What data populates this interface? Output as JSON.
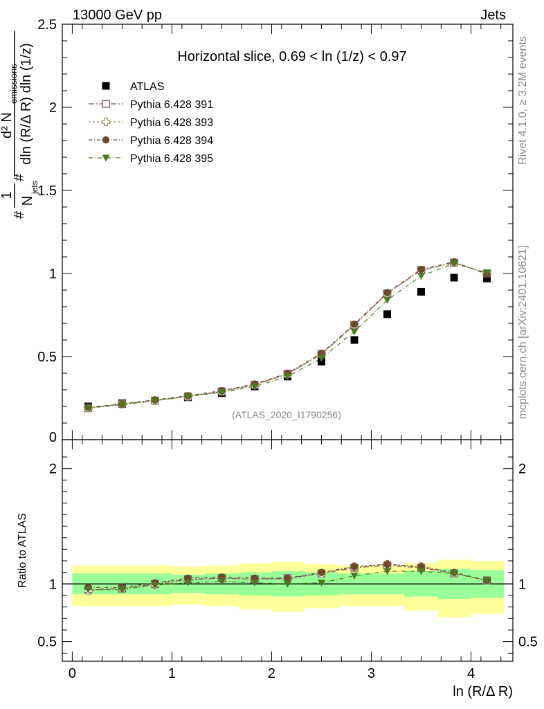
{
  "header": {
    "left_label": "13000 GeV pp",
    "right_label": "Jets"
  },
  "side_labels": {
    "rivet": "Rivet 4.1.0, ≥ 3.2M events",
    "mcplots": "mcplots.cern.ch [arXiv:2401.10621]"
  },
  "chart_data": [
    {
      "type": "scatter",
      "panel": "main",
      "title": "Horizontal slice, 0.69 < ln (1/z) < 0.97",
      "watermark": "(ATLAS_2020_I1790256)",
      "ylabel_parts": {
        "frac1_num": "1",
        "frac1_den": "N",
        "frac1_den_sub": "jets",
        "frac2_num": "d² N",
        "frac2_num_sub": "emissions",
        "frac2_den": "dln (R/Δ R) dln (1/z)",
        "hash": "#"
      },
      "xlabel": "ln (R/Δ R)",
      "xlim": [
        -0.1,
        4.42
      ],
      "ylim": [
        0,
        2.5
      ],
      "yticks": [
        0,
        0.5,
        1,
        1.5,
        2,
        2.5
      ],
      "ytick_labels": [
        "0",
        "0.5",
        "1",
        "1.5",
        "2",
        "2.5"
      ],
      "x": [
        0.16,
        0.5,
        0.83,
        1.16,
        1.5,
        1.83,
        2.16,
        2.5,
        2.83,
        3.16,
        3.5,
        3.83,
        4.16
      ],
      "series": [
        {
          "name": "ATLAS",
          "marker": "square",
          "color": "#000000",
          "values": [
            0.2,
            0.22,
            0.235,
            0.255,
            0.28,
            0.32,
            0.38,
            0.47,
            0.6,
            0.755,
            0.89,
            0.975,
            0.97
          ]
        },
        {
          "name": "Pythia 6.428 391",
          "marker": "open-square",
          "color": "#7b4a68",
          "values": [
            0.19,
            0.215,
            0.235,
            0.26,
            0.29,
            0.33,
            0.395,
            0.515,
            0.69,
            0.88,
            1.02,
            1.065,
            1.0
          ]
        },
        {
          "name": "Pythia 6.428 393",
          "marker": "open-cross",
          "color": "#9c8a5c",
          "values": [
            0.19,
            0.215,
            0.235,
            0.26,
            0.29,
            0.33,
            0.395,
            0.515,
            0.69,
            0.88,
            1.02,
            1.065,
            1.0
          ]
        },
        {
          "name": "Pythia 6.428 394",
          "marker": "circle",
          "color": "#6b4a2e",
          "values": [
            0.195,
            0.215,
            0.24,
            0.265,
            0.295,
            0.335,
            0.4,
            0.52,
            0.695,
            0.885,
            1.025,
            1.07,
            0.995
          ]
        },
        {
          "name": "Pythia 6.428 395",
          "marker": "triangle-down",
          "color": "#4a7a1e",
          "values": [
            0.19,
            0.21,
            0.235,
            0.26,
            0.285,
            0.32,
            0.38,
            0.49,
            0.65,
            0.84,
            0.985,
            1.06,
            1.005
          ]
        }
      ]
    },
    {
      "type": "scatter",
      "panel": "ratio",
      "ylabel": "Ratio to ATLAS",
      "xlabel": "ln (R/Δ R)",
      "xlim": [
        -0.1,
        4.42
      ],
      "ylim": [
        0.33,
        2.25
      ],
      "xticks": [
        0,
        1,
        2,
        3,
        4
      ],
      "xtick_labels": [
        "0",
        "1",
        "2",
        "3",
        "4"
      ],
      "yticks": [
        0.5,
        1,
        2
      ],
      "ytick_labels": [
        "0.5",
        "1",
        "2"
      ],
      "bin_edges": [
        0,
        0.33,
        0.67,
        1.0,
        1.33,
        1.67,
        2.0,
        2.33,
        2.67,
        3.0,
        3.33,
        3.67,
        4.0,
        4.33
      ],
      "band_inner": {
        "color": "#99ff99",
        "lo": [
          0.91,
          0.91,
          0.91,
          0.92,
          0.91,
          0.9,
          0.89,
          0.9,
          0.91,
          0.91,
          0.89,
          0.87,
          0.88
        ],
        "hi": [
          1.09,
          1.09,
          1.09,
          1.08,
          1.09,
          1.1,
          1.11,
          1.1,
          1.09,
          1.09,
          1.11,
          1.13,
          1.12
        ]
      },
      "band_outer": {
        "color": "#ffff99",
        "lo": [
          0.81,
          0.81,
          0.81,
          0.82,
          0.81,
          0.78,
          0.76,
          0.79,
          0.81,
          0.81,
          0.77,
          0.71,
          0.74
        ],
        "hi": [
          1.16,
          1.16,
          1.16,
          1.15,
          1.16,
          1.18,
          1.19,
          1.17,
          1.16,
          1.16,
          1.18,
          1.21,
          1.2
        ]
      },
      "reference": 1.0,
      "x": [
        0.16,
        0.5,
        0.83,
        1.16,
        1.5,
        1.83,
        2.16,
        2.5,
        2.83,
        3.16,
        3.5,
        3.83,
        4.16
      ],
      "series": [
        {
          "name": "Pythia 6.428 391",
          "marker": "open-square",
          "color": "#7b4a68",
          "values": [
            0.95,
            0.96,
            1.0,
            1.04,
            1.05,
            1.04,
            1.05,
            1.09,
            1.14,
            1.16,
            1.14,
            1.09,
            1.03
          ]
        },
        {
          "name": "Pythia 6.428 393",
          "marker": "open-cross",
          "color": "#9c8a5c",
          "values": [
            0.94,
            0.96,
            0.99,
            1.03,
            1.05,
            1.04,
            1.04,
            1.09,
            1.15,
            1.17,
            1.15,
            1.09,
            1.03
          ]
        },
        {
          "name": "Pythia 6.428 394",
          "marker": "circle",
          "color": "#6b4a2e",
          "values": [
            0.97,
            0.97,
            1.01,
            1.05,
            1.06,
            1.05,
            1.05,
            1.1,
            1.15,
            1.17,
            1.15,
            1.1,
            1.03
          ]
        },
        {
          "name": "Pythia 6.428 395",
          "marker": "triangle-down",
          "color": "#4a7a1e",
          "values": [
            0.95,
            0.95,
            0.99,
            1.01,
            1.02,
            1.01,
            1.0,
            1.01,
            1.07,
            1.11,
            1.11,
            1.09,
            1.03
          ]
        }
      ]
    }
  ]
}
